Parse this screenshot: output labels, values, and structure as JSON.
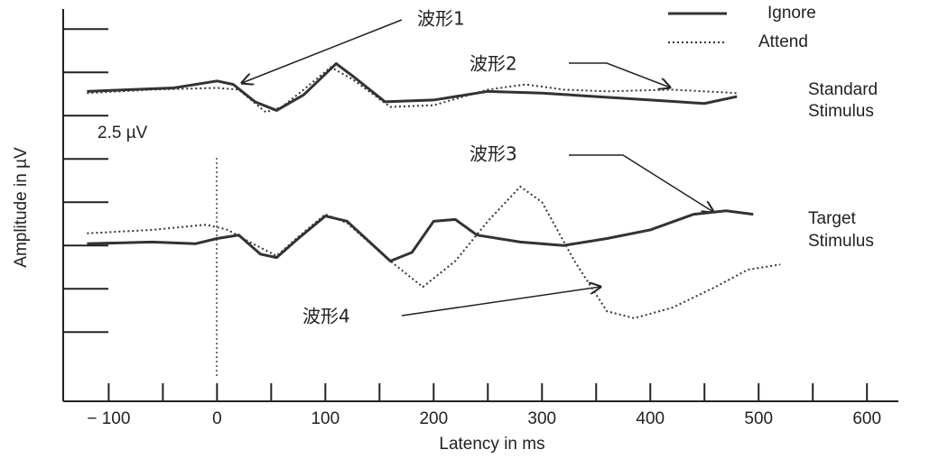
{
  "chart_data": {
    "type": "line",
    "xlabel": "Latency in ms",
    "ylabel": "Amplitude in µV",
    "scale_label": "2.5 µV",
    "group_labels": [
      [
        "Standard",
        "Stimulus"
      ],
      [
        "Target",
        "Stimulus"
      ]
    ],
    "annotations": [
      "波形1",
      "波形2",
      "波形3",
      "波形4"
    ],
    "xlim": [
      -142,
      629
    ],
    "xticks": [
      {
        "value": -100,
        "label": "− 100"
      },
      0,
      100,
      200,
      300,
      400,
      500,
      600
    ],
    "xminorticks": [
      -50,
      50,
      150,
      250,
      350,
      450,
      550
    ],
    "ylim": [
      0,
      22.5
    ],
    "yticks": [
      4,
      6.5,
      9,
      11.5,
      14,
      16.5,
      19,
      21.5
    ],
    "series": [
      {
        "name": "Ignore",
        "color": "#333333",
        "style": "solid",
        "x": [
          -120,
          -80,
          -40,
          0,
          15,
          35,
          55,
          80,
          110,
          125,
          155,
          200,
          250,
          300,
          350,
          400,
          450,
          480
        ],
        "values": [
          17.9,
          18.0,
          18.1,
          18.5,
          18.3,
          17.3,
          16.8,
          17.7,
          19.5,
          18.8,
          17.3,
          17.4,
          17.9,
          17.8,
          17.6,
          17.4,
          17.2,
          17.6
        ]
      },
      {
        "name": "Attend",
        "color": "#333333",
        "style": "dotted",
        "x": [
          -120,
          -60,
          0,
          20,
          45,
          60,
          80,
          105,
          125,
          160,
          200,
          250,
          285,
          320,
          360,
          420,
          480
        ],
        "values": [
          17.8,
          18.0,
          18.1,
          18.0,
          16.7,
          17.0,
          18.0,
          19.3,
          18.6,
          17.0,
          17.1,
          18.0,
          18.3,
          18.0,
          17.9,
          18.0,
          17.8
        ]
      },
      {
        "name": "Ignore",
        "color": "#333333",
        "style": "solid",
        "x": [
          -120,
          -60,
          -20,
          0,
          20,
          40,
          55,
          75,
          100,
          120,
          160,
          180,
          200,
          220,
          240,
          280,
          320,
          360,
          400,
          440,
          470,
          495
        ],
        "values": [
          9.1,
          9.2,
          9.1,
          9.4,
          9.6,
          8.5,
          8.3,
          9.4,
          10.7,
          10.4,
          8.1,
          8.6,
          10.4,
          10.5,
          9.6,
          9.2,
          9.0,
          9.4,
          9.9,
          10.8,
          11.0,
          10.8
        ]
      },
      {
        "name": "Attend",
        "color": "#333333",
        "style": "dotted",
        "x": [
          -120,
          -60,
          -10,
          10,
          30,
          55,
          75,
          100,
          120,
          160,
          190,
          220,
          250,
          280,
          300,
          330,
          360,
          385,
          420,
          460,
          490,
          520
        ],
        "values": [
          9.7,
          9.9,
          10.2,
          9.9,
          9.2,
          8.4,
          9.5,
          10.8,
          10.3,
          8.1,
          6.6,
          8.1,
          10.4,
          12.4,
          11.5,
          8.1,
          5.2,
          4.8,
          5.4,
          6.6,
          7.6,
          7.9
        ]
      }
    ]
  }
}
